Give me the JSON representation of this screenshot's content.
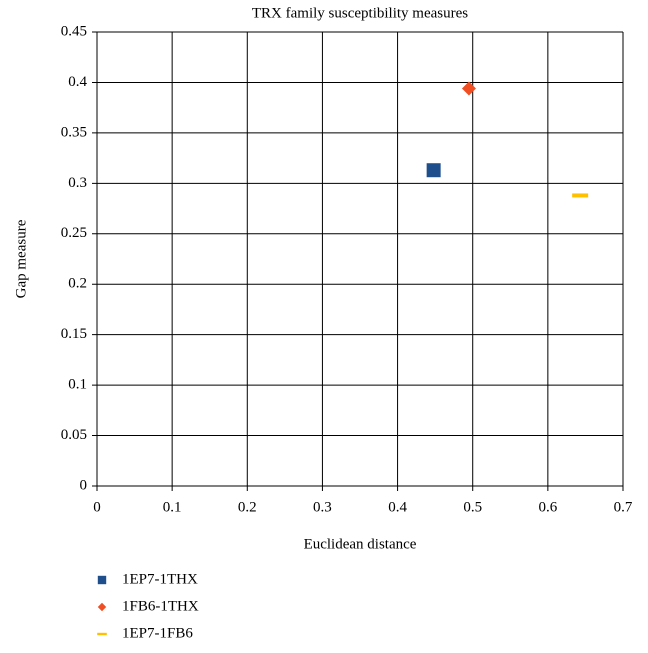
{
  "chart_data": {
    "type": "scatter",
    "title": "TRX family susceptibility measures",
    "x_label": "Euclidean distance",
    "y_label": "Gap measure",
    "xlim": [
      0,
      0.7
    ],
    "xticks": [
      0,
      0.1,
      0.2,
      0.3,
      0.4,
      0.5,
      0.6,
      0.7
    ],
    "ylim": [
      0,
      0.45
    ],
    "yticks": [
      0,
      0.05,
      0.1,
      0.15,
      0.2,
      0.25,
      0.3,
      0.35,
      0.4,
      0.45
    ],
    "grid": true,
    "legend": "bottom",
    "series": [
      {
        "name": "1EP7-1THX",
        "color": "#1f4e8c",
        "marker": "square",
        "x": [
          0.448
        ],
        "values": [
          0.313
        ]
      },
      {
        "name": "1FB6-1THX",
        "color": "#f04e23",
        "marker": "diamond",
        "x": [
          0.495
        ],
        "values": [
          0.394
        ]
      },
      {
        "name": "1EP7-1FB6",
        "color": "#ffc000",
        "marker": "dash",
        "x": [
          0.643
        ],
        "values": [
          0.288
        ]
      }
    ]
  }
}
